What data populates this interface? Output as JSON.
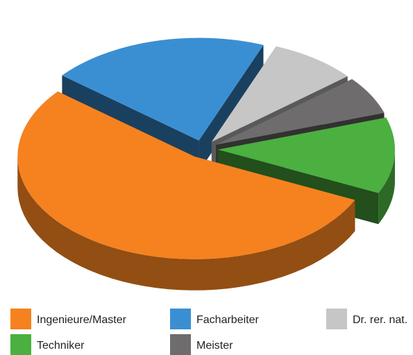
{
  "chart_data": {
    "type": "pie",
    "categories": [
      "Ingenieure/Master",
      "Facharbeiter",
      "Dr. rer. nat.",
      "Techniker",
      "Meister"
    ],
    "values": [
      54,
      20,
      8,
      12,
      6
    ],
    "colors": [
      "#f5821f",
      "#3a8fd3",
      "#c6c6c6",
      "#4bb03f",
      "#6e6c6c"
    ]
  }
}
